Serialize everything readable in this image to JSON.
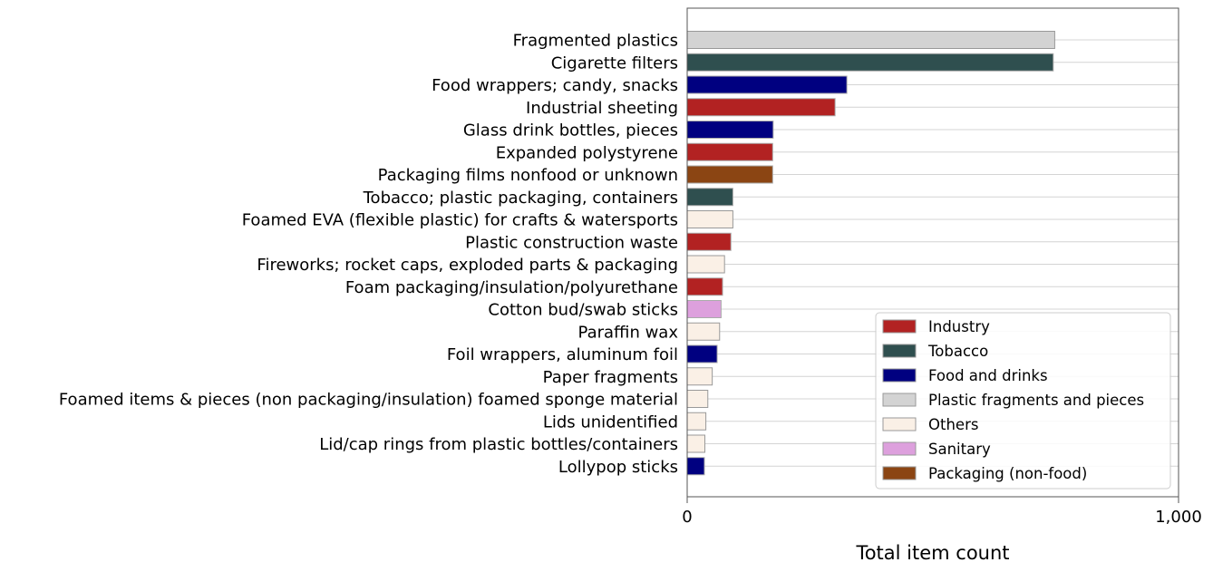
{
  "chart_data": {
    "type": "bar",
    "orientation": "horizontal",
    "xlabel": "Total item count",
    "ylabel": "",
    "title": "",
    "xlim": [
      0,
      1000
    ],
    "xticks": [
      0,
      1000
    ],
    "xtick_labels": [
      "0",
      "1,000"
    ],
    "grid": "horizontal lines at each bar",
    "legend_position": "lower-right",
    "groups": [
      {
        "name": "Industry",
        "color": "#b22222"
      },
      {
        "name": "Tobacco",
        "color": "#2f4f4f"
      },
      {
        "name": "Food and drinks",
        "color": "#000080"
      },
      {
        "name": "Plastic fragments and pieces",
        "color": "#d3d3d3"
      },
      {
        "name": "Others",
        "color": "#faf0e6"
      },
      {
        "name": "Sanitary",
        "color": "#dda0dd"
      },
      {
        "name": "Packaging (non-food)",
        "color": "#8b4513"
      }
    ],
    "categories": [
      "Fragmented plastics",
      "Cigarette filters",
      "Food wrappers; candy, snacks",
      "Industrial sheeting",
      "Glass drink bottles, pieces",
      "Expanded polystyrene",
      "Packaging films nonfood or unknown",
      "Tobacco; plastic packaging, containers",
      "Foamed EVA (flexible plastic) for crafts & watersports",
      "Plastic construction waste",
      "Fireworks; rocket caps, exploded parts & packaging",
      "Foam packaging/insulation/polyurethane",
      "Cotton bud/swab sticks",
      "Paraffin wax",
      "Foil wrappers, aluminum foil",
      "Paper fragments",
      "Foamed items & pieces (non packaging/insulation) foamed sponge material",
      "Lids unidentified",
      "Lid/cap rings from plastic bottles/containers",
      "Lollypop sticks"
    ],
    "values": [
      748,
      745,
      325,
      301,
      175,
      174,
      174,
      93,
      93,
      89,
      76,
      72,
      69,
      66,
      61,
      51,
      42,
      38,
      36,
      35
    ],
    "category_groups": [
      "Plastic fragments and pieces",
      "Tobacco",
      "Food and drinks",
      "Industry",
      "Food and drinks",
      "Industry",
      "Packaging (non-food)",
      "Tobacco",
      "Others",
      "Industry",
      "Others",
      "Industry",
      "Sanitary",
      "Others",
      "Food and drinks",
      "Others",
      "Others",
      "Others",
      "Others",
      "Food and drinks"
    ]
  }
}
